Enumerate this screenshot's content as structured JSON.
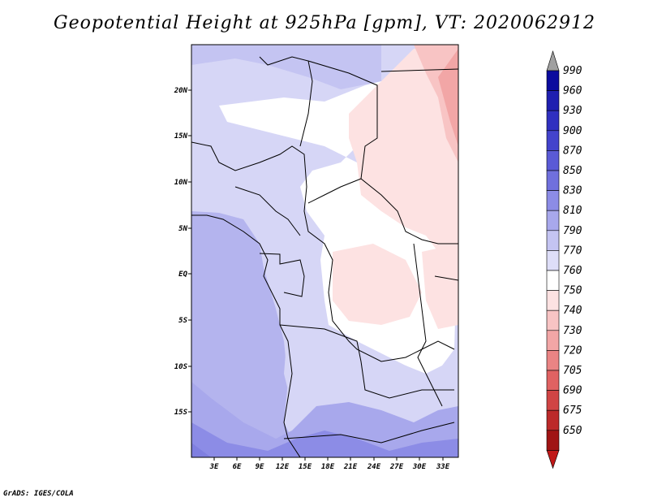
{
  "title": "Geopotential Height at 925hPa [gpm], VT: 2020062912",
  "credit": "GrADS: IGES/COLA",
  "map": {
    "lat_labels": [
      "20N",
      "15N",
      "10N",
      "5N",
      "EQ",
      "5S",
      "10S",
      "15S"
    ],
    "lon_labels": [
      "3E",
      "6E",
      "9E",
      "12E",
      "15E",
      "18E",
      "21E",
      "24E",
      "27E",
      "30E",
      "33E"
    ]
  },
  "colorbar": {
    "levels": [
      "990",
      "960",
      "930",
      "900",
      "870",
      "850",
      "830",
      "810",
      "790",
      "770",
      "760",
      "750",
      "740",
      "730",
      "720",
      "705",
      "690",
      "675",
      "650"
    ],
    "colors": [
      "#0b0b9e",
      "#1f1fb0",
      "#3030c0",
      "#4343cc",
      "#5a5ad6",
      "#7070dd",
      "#8c8ce6",
      "#a8a8ec",
      "#c4c4f2",
      "#dedef8",
      "#ffffff",
      "#fde2e2",
      "#f8c4c4",
      "#f2a6a6",
      "#ea8484",
      "#e06262",
      "#d04444",
      "#bc2a2a",
      "#a01414"
    ],
    "top_arrow_color": "#a0a0a0",
    "bottom_arrow_color": "#c01818"
  }
}
